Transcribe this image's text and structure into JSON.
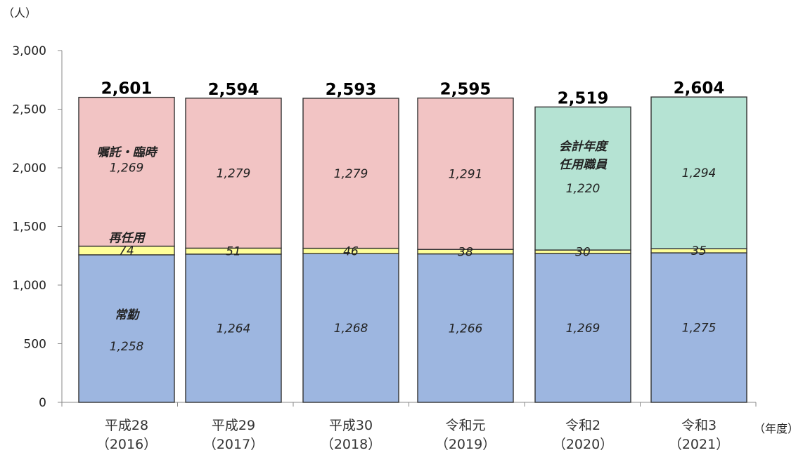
{
  "chart_data": {
    "type": "bar",
    "stacked": true,
    "yunit": "（人）",
    "xunit": "（年度）",
    "ylim": [
      0,
      3000
    ],
    "yticks": [
      "0",
      "500",
      "1,000",
      "1,500",
      "2,000",
      "2,500",
      "3,000"
    ],
    "categories": [
      [
        "平成28",
        "（2016）"
      ],
      [
        "平成29",
        "（2017）"
      ],
      [
        "平成30",
        "（2018）"
      ],
      [
        "令和元",
        "（2019）"
      ],
      [
        "令和2",
        "（2020）"
      ],
      [
        "令和3",
        "（2021）"
      ]
    ],
    "series": [
      {
        "name": "常勤",
        "color": "#9db6e0",
        "values": [
          1258,
          1264,
          1268,
          1266,
          1269,
          1275
        ]
      },
      {
        "name": "再任用",
        "color": "#ffff99",
        "values": [
          74,
          51,
          46,
          38,
          30,
          35
        ]
      },
      {
        "name": "嘱託・臨時",
        "color": "#f2c4c4",
        "values": [
          1269,
          1279,
          1279,
          1291,
          null,
          null
        ]
      },
      {
        "name": "会計年度任用職員",
        "name_lines": [
          "会計年度",
          "任用職員"
        ],
        "color": "#b5e3d3",
        "values": [
          null,
          null,
          null,
          null,
          1220,
          1294
        ]
      }
    ],
    "value_labels": [
      [
        "1,258",
        "74",
        "1,269"
      ],
      [
        "1,264",
        "51",
        "1,279"
      ],
      [
        "1,268",
        "46",
        "1,279"
      ],
      [
        "1,266",
        "38",
        "1,291"
      ],
      [
        "1,269",
        "30",
        "1,220"
      ],
      [
        "1,275",
        "35",
        "1,294"
      ]
    ],
    "totals": [
      "2,601",
      "2,594",
      "2,593",
      "2,595",
      "2,519",
      "2,604"
    ]
  }
}
